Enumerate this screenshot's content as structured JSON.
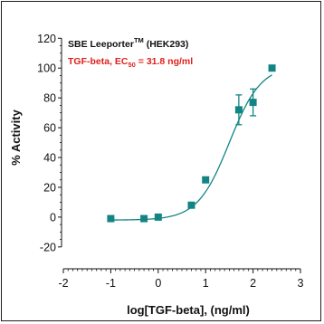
{
  "chart_data": {
    "type": "scatter",
    "xlabel": "log[TGF-beta], (ng/ml)",
    "ylabel": "% Activity",
    "xlim": [
      -2,
      3
    ],
    "ylim": [
      -28,
      122
    ],
    "x_ticks": [
      -2,
      -1,
      0,
      1,
      2,
      3
    ],
    "y_ticks": [
      -20,
      0,
      20,
      40,
      60,
      80,
      100,
      120
    ],
    "annotation": {
      "line1_main": "SBE Leeporter",
      "line1_sup": "TM",
      "line1_tail": " (HEK293)",
      "line2_main": "TGF-beta, EC",
      "line2_sub": "50",
      "line2_tail": " = 31.8 ng/ml"
    },
    "series": [
      {
        "x": [
          -1.0,
          -0.3,
          0.0,
          0.7,
          1.0,
          1.7,
          2.0,
          2.4
        ],
        "y": [
          -1,
          -1,
          0,
          8,
          25,
          72,
          77,
          100
        ],
        "err": [
          1,
          1,
          1,
          2,
          2,
          10,
          9,
          2
        ]
      }
    ],
    "fit": {
      "bottom": -2,
      "top": 102,
      "log_ec50": 1.5,
      "hill": 1.3,
      "x_start": -1.0,
      "x_end": 2.4
    },
    "marker_color": "#138484",
    "annotation_colors": {
      "line1": "#111111",
      "line2": "#e0201c"
    }
  }
}
